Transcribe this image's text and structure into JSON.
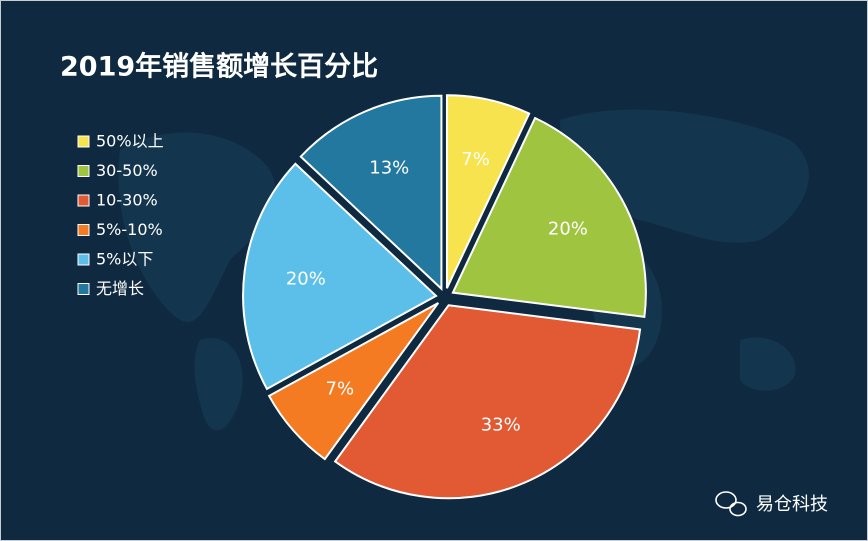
{
  "chart_data": {
    "type": "pie",
    "title": "2019年销售额增长百分比",
    "categories": [
      "50%以上",
      "30-50%",
      "10-30%",
      "5%-10%",
      "5%以下",
      "无增长"
    ],
    "values": [
      7,
      20,
      33,
      7,
      20,
      13
    ],
    "value_labels": [
      "7%",
      "20%",
      "33%",
      "7%",
      "20%",
      "13%"
    ],
    "colors": [
      "#f7e34e",
      "#9fc43f",
      "#e25a34",
      "#f47b22",
      "#5cbfea",
      "#23789f"
    ],
    "legend": "left"
  },
  "watermark": "易仓科技"
}
